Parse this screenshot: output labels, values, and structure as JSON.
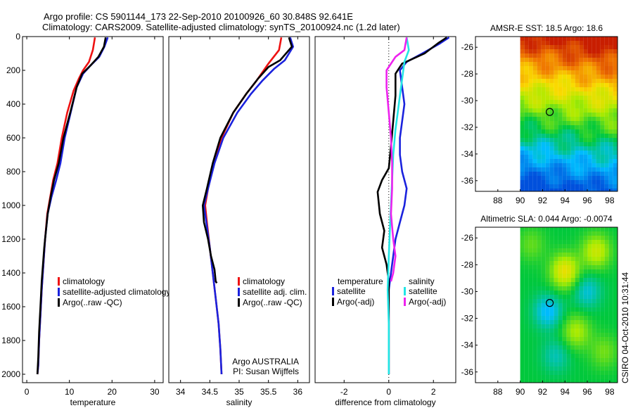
{
  "header": {
    "line1": "Argo profile: CS 5901144_173 22-Sep-2010 20100926_60 30.848S 92.641E",
    "line2": "Climatology: CARS2009. Satellite-adjusted climatology: synTS_20100924.nc (1.2d later)"
  },
  "colors": {
    "climatology": "#ee1111",
    "satellite": "#1a22dd",
    "argo": "#000000",
    "sal_sat": "#22e5e5",
    "sal_argo": "#ee22ee"
  },
  "chart_data": [
    {
      "type": "line",
      "id": "temperature",
      "xlabel": "temperature",
      "xlim": [
        -1,
        32
      ],
      "ylim": [
        0,
        2050
      ],
      "xticks": [
        0,
        10,
        20,
        30
      ],
      "xtick_labels": [
        "0",
        "10",
        "20",
        "30"
      ],
      "yticks": [
        0,
        200,
        400,
        600,
        800,
        1000,
        1200,
        1400,
        1600,
        1800,
        2000
      ],
      "ytick_labels": [
        "0",
        "200",
        "400",
        "600",
        "800",
        "1000",
        "1200",
        "1400",
        "1600",
        "1800",
        "2000"
      ],
      "legend": [
        "climatology",
        "satellite-adjusted climatology",
        "Argo(..raw -QC)"
      ],
      "series": [
        {
          "name": "climatology",
          "color": "climatology",
          "x": [
            16,
            15.5,
            14.6,
            13.2,
            12.2,
            11,
            9.5,
            8.2,
            7.2,
            6.2,
            5.5,
            4.8,
            4.3,
            3.9,
            3.5,
            3.2,
            2.9,
            2.7,
            2.5
          ],
          "y": [
            5,
            80,
            150,
            200,
            250,
            320,
            450,
            600,
            750,
            850,
            950,
            1050,
            1200,
            1350,
            1500,
            1650,
            1800,
            1950,
            2000
          ]
        },
        {
          "name": "satellite",
          "color": "satellite",
          "x": [
            19,
            18.2,
            17,
            15,
            13.2,
            11.7,
            10.3,
            8.9,
            7.9,
            6.9,
            5.8,
            4.9,
            4.3,
            3.9,
            3.5,
            3.2,
            2.9,
            2.7,
            2.5
          ],
          "y": [
            5,
            60,
            120,
            170,
            220,
            300,
            450,
            600,
            750,
            850,
            950,
            1050,
            1200,
            1350,
            1500,
            1650,
            1800,
            1950,
            2000
          ]
        },
        {
          "name": "argo",
          "color": "argo",
          "x": [
            18.5,
            18.1,
            16.8,
            15,
            13,
            11.7,
            10.2,
            8.6,
            7.5,
            6.4,
            5.6,
            4.9,
            4.5,
            4.1,
            3.8,
            3.5,
            3.2,
            2.9,
            2.7,
            2.5
          ],
          "y": [
            5,
            60,
            120,
            170,
            220,
            300,
            450,
            600,
            750,
            850,
            950,
            1050,
            1150,
            1250,
            1350,
            1450,
            1600,
            1750,
            1900,
            2000
          ]
        }
      ]
    },
    {
      "type": "line",
      "id": "salinity",
      "xlabel": "salinity",
      "xlim": [
        33.8,
        36.2
      ],
      "ylim": [
        0,
        2050
      ],
      "xticks": [
        34,
        34.5,
        35,
        35.5,
        36
      ],
      "xtick_labels": [
        "34",
        "34.5",
        "35",
        "35.5",
        "36"
      ],
      "legend": [
        "climatology",
        "satellite adj. clim.",
        "Argo(..raw -QC)"
      ],
      "annotation": [
        "Argo AUSTRALIA",
        "PI: Susan Wijffels"
      ],
      "series": [
        {
          "name": "climatology",
          "color": "climatology",
          "x": [
            35.72,
            35.68,
            35.5,
            35.42,
            35.3,
            35.12,
            34.9,
            34.7,
            34.57,
            34.47,
            34.42,
            34.45,
            34.5,
            34.55,
            34.6,
            34.65,
            34.68,
            34.7
          ],
          "y": [
            5,
            80,
            160,
            200,
            260,
            340,
            450,
            600,
            750,
            900,
            1000,
            1100,
            1250,
            1400,
            1550,
            1700,
            1850,
            2000
          ]
        },
        {
          "name": "satellite",
          "color": "satellite",
          "x": [
            35.87,
            35.92,
            35.78,
            35.6,
            35.4,
            35.2,
            34.97,
            34.73,
            34.58,
            34.47,
            34.4,
            34.44,
            34.5,
            34.55,
            34.6,
            34.65,
            34.68,
            34.7
          ],
          "y": [
            5,
            60,
            140,
            190,
            260,
            340,
            450,
            600,
            750,
            900,
            1000,
            1100,
            1250,
            1400,
            1550,
            1700,
            1850,
            2000
          ]
        },
        {
          "name": "argo",
          "color": "argo",
          "x": [
            35.85,
            35.9,
            35.7,
            35.5,
            35.32,
            35.12,
            34.9,
            34.68,
            34.55,
            34.45,
            34.38,
            34.4,
            34.47,
            34.52,
            34.58,
            34.6,
            34.62
          ],
          "y": [
            5,
            60,
            140,
            180,
            250,
            340,
            450,
            600,
            750,
            900,
            1000,
            1100,
            1200,
            1300,
            1380,
            1450,
            1460
          ]
        }
      ]
    },
    {
      "type": "line",
      "id": "difference",
      "xlabel": "difference from climatology",
      "xlim": [
        -3.3,
        3.0
      ],
      "ylim": [
        0,
        2050
      ],
      "xticks": [
        -2,
        0,
        2
      ],
      "xtick_labels": [
        "-2",
        "0",
        "2"
      ],
      "legend_headers": [
        "temperature",
        "salinity"
      ],
      "legend_left": [
        "satellite",
        "Argo(-adj)"
      ],
      "legend_right": [
        "satellite",
        "Argo(-adj)"
      ],
      "series": [
        {
          "name": "temp_satellite",
          "color": "satellite",
          "x": [
            2.7,
            2.3,
            1.5,
            0.8,
            0.5,
            0.6,
            0.7,
            0.6,
            0.5,
            0.5,
            0.6,
            0.8,
            0.7,
            0.5,
            0.3,
            0.2,
            0.1,
            0,
            0,
            0,
            0
          ],
          "y": [
            5,
            40,
            100,
            150,
            200,
            300,
            400,
            500,
            600,
            700,
            800,
            900,
            1000,
            1100,
            1200,
            1300,
            1400,
            1500,
            1700,
            1850,
            2000
          ]
        },
        {
          "name": "temp_argo",
          "color": "argo",
          "x": [
            2.6,
            2.2,
            1.6,
            0.6,
            0.3,
            0.3,
            0.2,
            0.1,
            0,
            -0.3,
            -0.5,
            -0.4,
            -0.2,
            -0.3,
            -0.1,
            0,
            0,
            0,
            0
          ],
          "y": [
            5,
            40,
            100,
            160,
            220,
            350,
            500,
            650,
            780,
            850,
            920,
            1050,
            1150,
            1250,
            1350,
            1450,
            1600,
            1750,
            2000
          ]
        },
        {
          "name": "sal_satellite",
          "color": "sal_sat",
          "x": [
            0.8,
            0.9,
            0.7,
            0.6,
            0.5,
            0.4,
            0.3,
            0.2,
            0.15,
            0.1,
            0.05,
            0,
            -0.05,
            0,
            0,
            0
          ],
          "y": [
            5,
            80,
            150,
            250,
            350,
            450,
            550,
            700,
            850,
            1000,
            1150,
            1300,
            1500,
            1700,
            1850,
            2000
          ]
        },
        {
          "name": "sal_argo",
          "color": "sal_argo",
          "x": [
            0.8,
            0.7,
            0.3,
            -0.1,
            -0.1,
            0,
            0.1,
            0.15,
            0.15,
            0.1,
            0.2,
            0.3,
            0.2,
            0.1
          ],
          "y": [
            5,
            80,
            120,
            200,
            300,
            450,
            600,
            750,
            900,
            1050,
            1200,
            1300,
            1400,
            1450
          ]
        }
      ]
    },
    {
      "type": "heatmap",
      "id": "sst",
      "title": "AMSR-E SST: 18.5 Argo: 18.6",
      "xlim": [
        86,
        98.7
      ],
      "ylim": [
        -36.8,
        -25.2
      ],
      "xticks": [
        88,
        90,
        92,
        94,
        96,
        98
      ],
      "xtick_labels": [
        "88",
        "90",
        "92",
        "94",
        "96",
        "98"
      ],
      "yticks": [
        -26,
        -28,
        -30,
        -32,
        -34,
        -36
      ],
      "ytick_labels": [
        "-26",
        "-28",
        "-30",
        "-32",
        "-34",
        "-36"
      ],
      "data_x_start": 90,
      "marker": {
        "lon": 92.64,
        "lat": -30.85
      }
    },
    {
      "type": "heatmap",
      "id": "sla",
      "title": "Altimetric SLA: 0.044 Argo: -0.0074",
      "xlim": [
        86,
        98.7
      ],
      "ylim": [
        -36.8,
        -25.2
      ],
      "xticks": [
        88,
        90,
        92,
        94,
        96,
        98
      ],
      "xtick_labels": [
        "88",
        "90",
        "92",
        "94",
        "96",
        "98"
      ],
      "yticks": [
        -26,
        -28,
        -30,
        -32,
        -34,
        -36
      ],
      "ytick_labels": [
        "-26",
        "-28",
        "-30",
        "-32",
        "-34",
        "-36"
      ],
      "data_x_start": 90,
      "marker": {
        "lon": 92.64,
        "lat": -30.85
      }
    }
  ],
  "footer": {
    "stamp": "CSIRO 04-Oct-2010 10:31:44"
  }
}
